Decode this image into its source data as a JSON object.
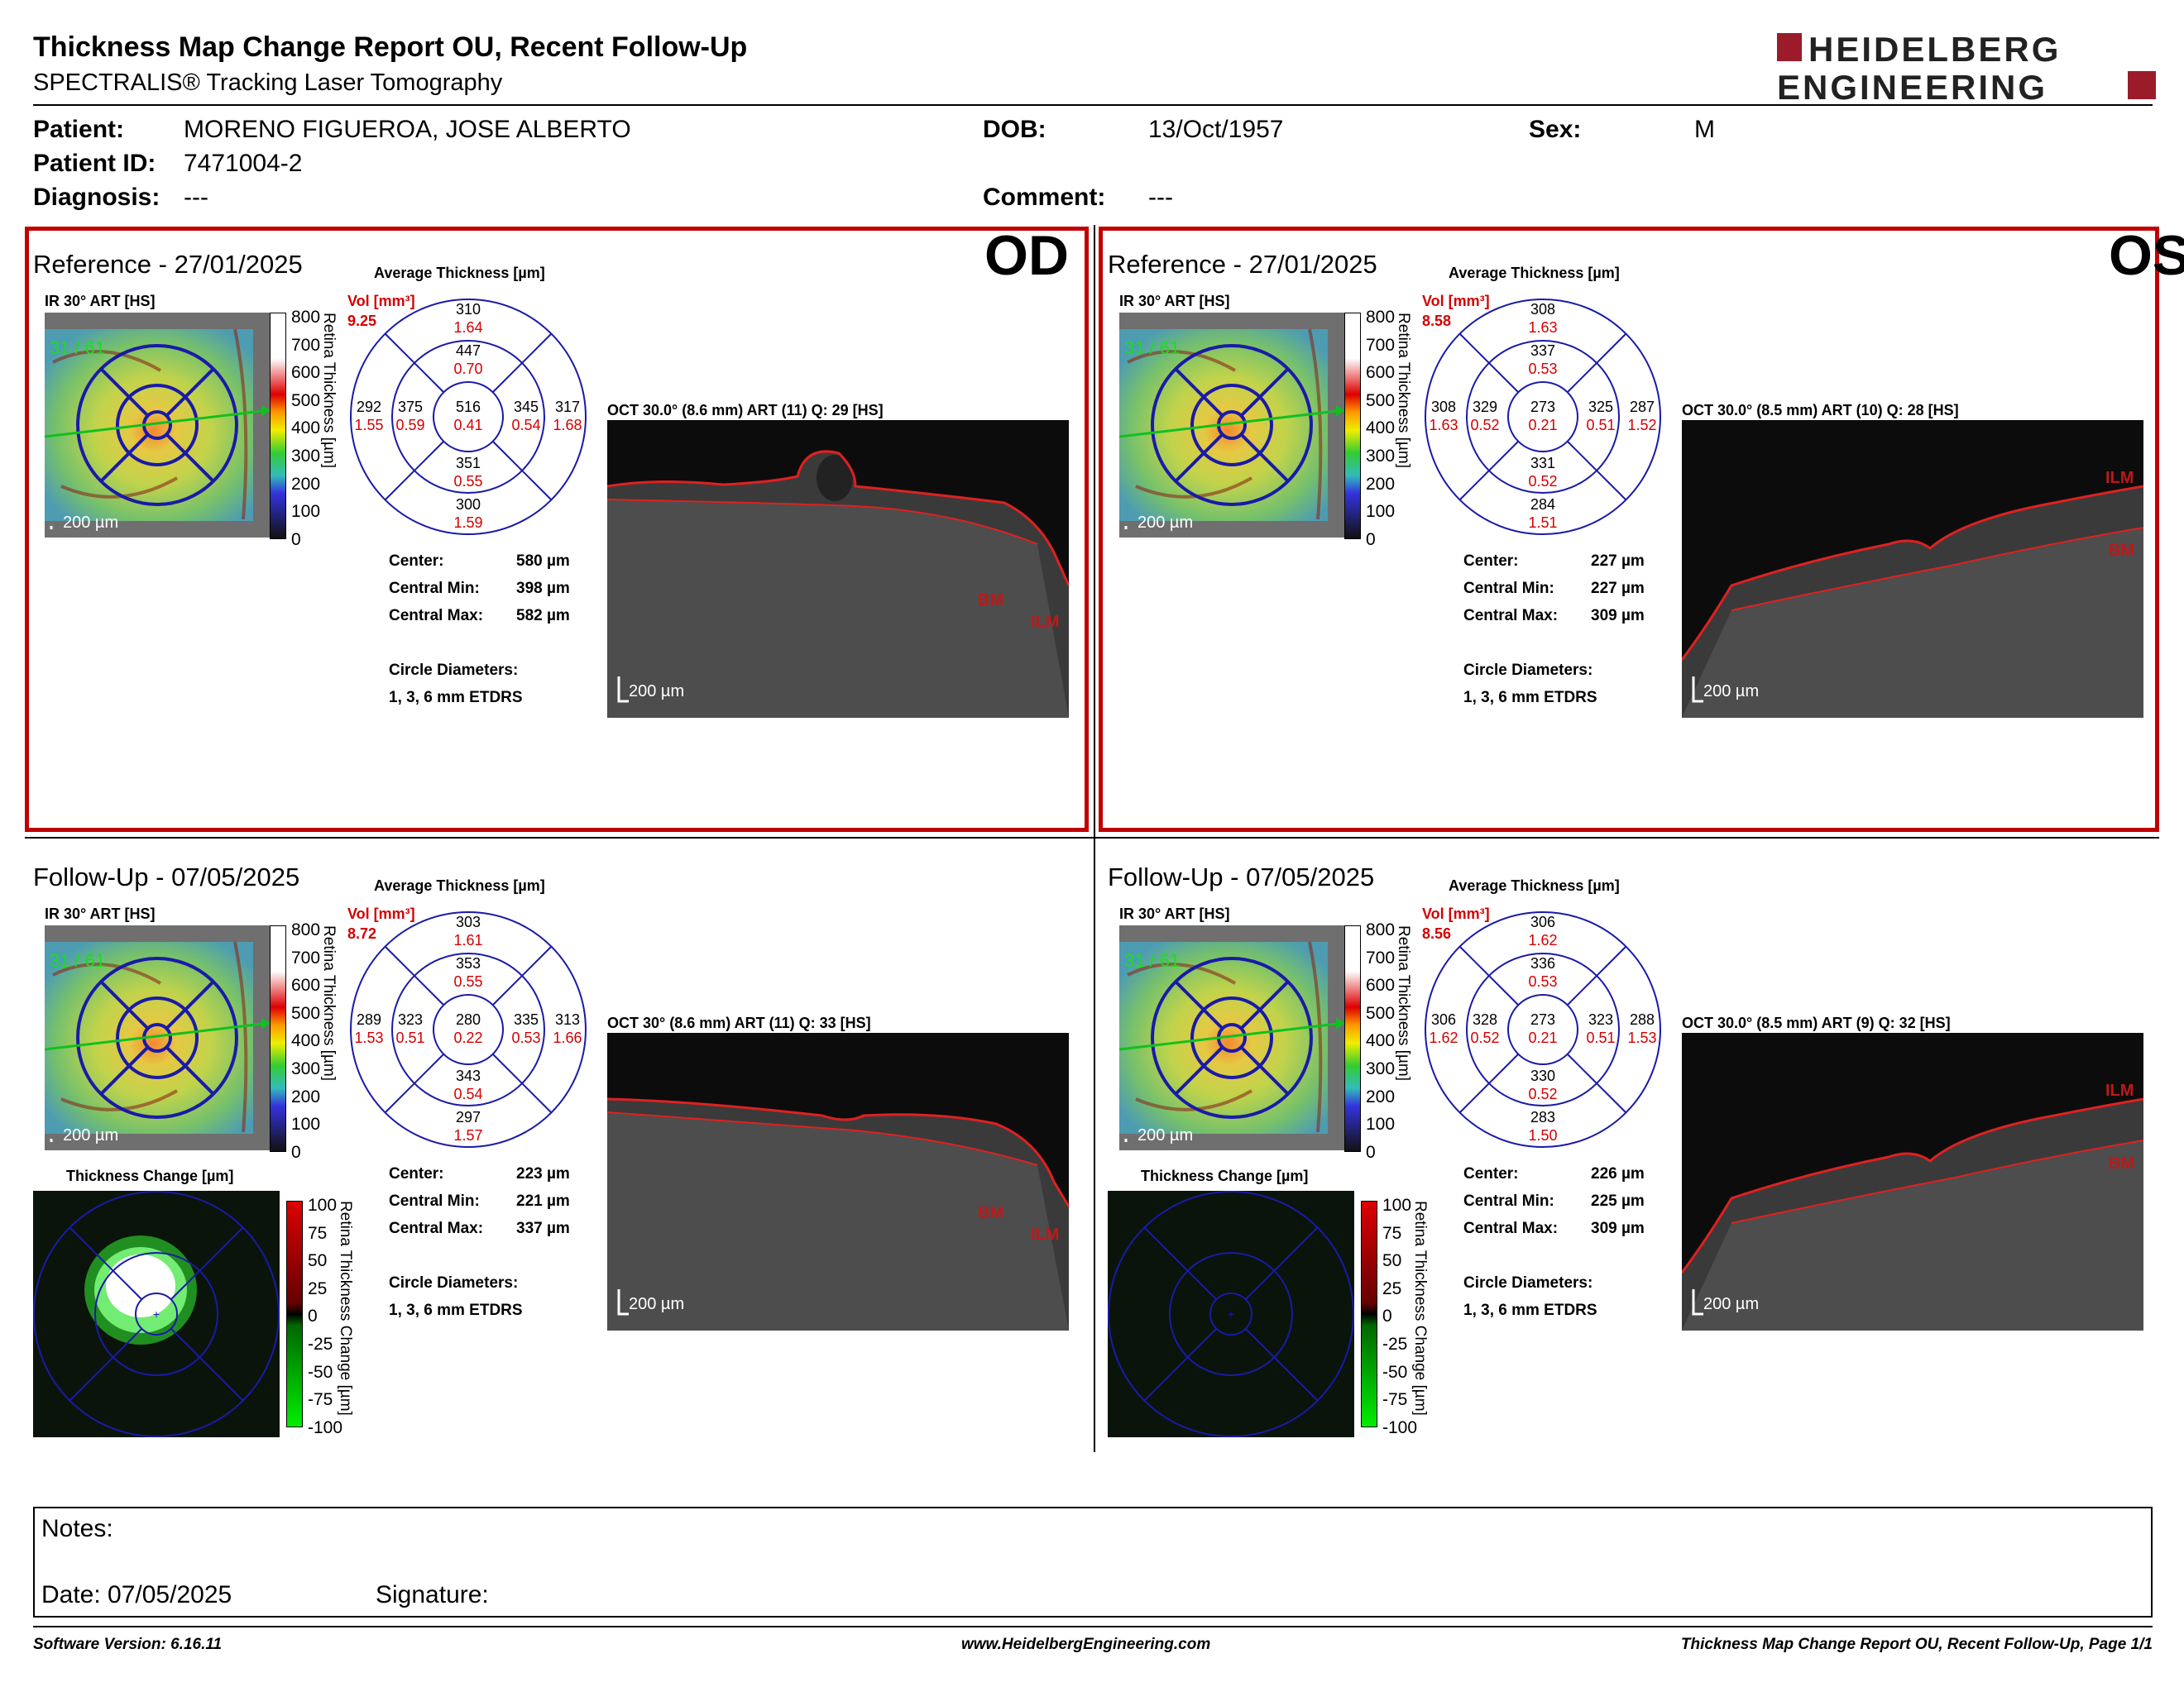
{
  "header": {
    "title": "Thickness Map Change Report OU, Recent Follow-Up",
    "subtitle": "SPECTRALIS® Tracking Laser Tomography",
    "logo_line1": "HEIDELBERG",
    "logo_line2": "ENGINEERING"
  },
  "patient": {
    "patient_label": "Patient:",
    "patient_value": "MORENO FIGUEROA, JOSE ALBERTO",
    "id_label": "Patient ID:",
    "id_value": "7471004-2",
    "diagnosis_label": "Diagnosis:",
    "diagnosis_value": "---",
    "dob_label": "DOB:",
    "dob_value": "13/Oct/1957",
    "comment_label": "Comment:",
    "comment_value": "---",
    "sex_label": "Sex:",
    "sex_value": "M"
  },
  "colors": {
    "frame": "#c00000",
    "etdrs": "#1a1aa8",
    "vol": "#d40000"
  },
  "panels": [
    {
      "eye": "OD",
      "header": "Reference - 27/01/2025",
      "ir_label": "IR 30° ART [HS]",
      "avg_label": "Average Thickness [µm]",
      "vol_label": "Vol [mm³]",
      "vol_value": "9.25",
      "etdrs": {
        "top": [
          "310",
          "1.64"
        ],
        "inner_top": [
          "447",
          "0.70"
        ],
        "left": [
          "292",
          "1.55"
        ],
        "inner_left": [
          "375",
          "0.59"
        ],
        "center": [
          "516",
          "0.41"
        ],
        "inner_right": [
          "345",
          "0.54"
        ],
        "right": [
          "317",
          "1.68"
        ],
        "inner_bottom": [
          "351",
          "0.55"
        ],
        "bottom": [
          "300",
          "1.59"
        ]
      },
      "oct_label": "OCT 30.0° (8.6 mm) ART (11) Q: 29 [HS]",
      "stats": {
        "center_label": "Center:",
        "center_value": "580 µm",
        "min_label": "Central Min:",
        "min_value": "398 µm",
        "max_label": "Central Max:",
        "max_value": "582 µm",
        "diam_label": "Circle Diameters:",
        "diam_value": "1, 3, 6 mm ETDRS"
      }
    },
    {
      "eye": "OS",
      "header": "Reference - 27/01/2025",
      "ir_label": "IR 30° ART [HS]",
      "avg_label": "Average Thickness [µm]",
      "vol_label": "Vol [mm³]",
      "vol_value": "8.58",
      "etdrs": {
        "top": [
          "308",
          "1.63"
        ],
        "inner_top": [
          "337",
          "0.53"
        ],
        "left": [
          "308",
          "1.63"
        ],
        "inner_left": [
          "329",
          "0.52"
        ],
        "center": [
          "273",
          "0.21"
        ],
        "inner_right": [
          "325",
          "0.51"
        ],
        "right": [
          "287",
          "1.52"
        ],
        "inner_bottom": [
          "331",
          "0.52"
        ],
        "bottom": [
          "284",
          "1.51"
        ]
      },
      "oct_label": "OCT 30.0° (8.5 mm) ART (10) Q: 28 [HS]",
      "stats": {
        "center_label": "Center:",
        "center_value": "227 µm",
        "min_label": "Central Min:",
        "min_value": "227 µm",
        "max_label": "Central Max:",
        "max_value": "309 µm",
        "diam_label": "Circle Diameters:",
        "diam_value": "1, 3, 6 mm ETDRS"
      }
    },
    {
      "eye": "",
      "header": "Follow-Up - 07/05/2025",
      "ir_label": "IR 30° ART [HS]",
      "avg_label": "Average Thickness [µm]",
      "vol_label": "Vol [mm³]",
      "vol_value": "8.72",
      "etdrs": {
        "top": [
          "303",
          "1.61"
        ],
        "inner_top": [
          "353",
          "0.55"
        ],
        "left": [
          "289",
          "1.53"
        ],
        "inner_left": [
          "323",
          "0.51"
        ],
        "center": [
          "280",
          "0.22"
        ],
        "inner_right": [
          "335",
          "0.53"
        ],
        "right": [
          "313",
          "1.66"
        ],
        "inner_bottom": [
          "343",
          "0.54"
        ],
        "bottom": [
          "297",
          "1.57"
        ]
      },
      "oct_label": "OCT 30° (8.6 mm) ART (11) Q: 33 [HS]",
      "change_label": "Thickness Change [µm]",
      "stats": {
        "center_label": "Center:",
        "center_value": "223 µm",
        "min_label": "Central Min:",
        "min_value": "221 µm",
        "max_label": "Central Max:",
        "max_value": "337 µm",
        "diam_label": "Circle Diameters:",
        "diam_value": "1, 3, 6 mm ETDRS"
      }
    },
    {
      "eye": "",
      "header": "Follow-Up - 07/05/2025",
      "ir_label": "IR 30° ART [HS]",
      "avg_label": "Average Thickness [µm]",
      "vol_label": "Vol [mm³]",
      "vol_value": "8.56",
      "etdrs": {
        "top": [
          "306",
          "1.62"
        ],
        "inner_top": [
          "336",
          "0.53"
        ],
        "left": [
          "306",
          "1.62"
        ],
        "inner_left": [
          "328",
          "0.52"
        ],
        "center": [
          "273",
          "0.21"
        ],
        "inner_right": [
          "323",
          "0.51"
        ],
        "right": [
          "288",
          "1.53"
        ],
        "inner_bottom": [
          "330",
          "0.52"
        ],
        "bottom": [
          "283",
          "1.50"
        ]
      },
      "oct_label": "OCT 30.0° (8.5 mm) ART (9) Q: 32 [HS]",
      "change_label": "Thickness Change [µm]",
      "stats": {
        "center_label": "Center:",
        "center_value": "226 µm",
        "min_label": "Central Min:",
        "min_value": "225 µm",
        "max_label": "Central Max:",
        "max_value": "309 µm",
        "diam_label": "Circle Diameters:",
        "diam_value": "1, 3, 6 mm ETDRS"
      }
    }
  ],
  "thickness_scale": [
    "800",
    "700",
    "600",
    "500",
    "400",
    "300",
    "200",
    "100",
    "0"
  ],
  "thickness_axis": "Retina Thickness [µm]",
  "change_scale": [
    "100",
    "75",
    "50",
    "25",
    "0",
    "-25",
    "-50",
    "-75",
    "-100"
  ],
  "change_axis": "Retina Thickness Change [µm]",
  "image_labels": {
    "ir_scale": "200 µm",
    "oct_scale": "200 µm",
    "ilm": "ILM",
    "bm": "BM",
    "m": "m",
    "ir_marker": "31 / 61"
  },
  "notes": {
    "notes_label": "Notes:",
    "date_label": "Date: 07/05/2025",
    "signature_label": "Signature:"
  },
  "footer": {
    "software": "Software Version: 6.16.11",
    "website": "www.HeidelbergEngineering.com",
    "page": "Thickness Map Change Report OU, Recent Follow-Up, Page 1/1"
  }
}
